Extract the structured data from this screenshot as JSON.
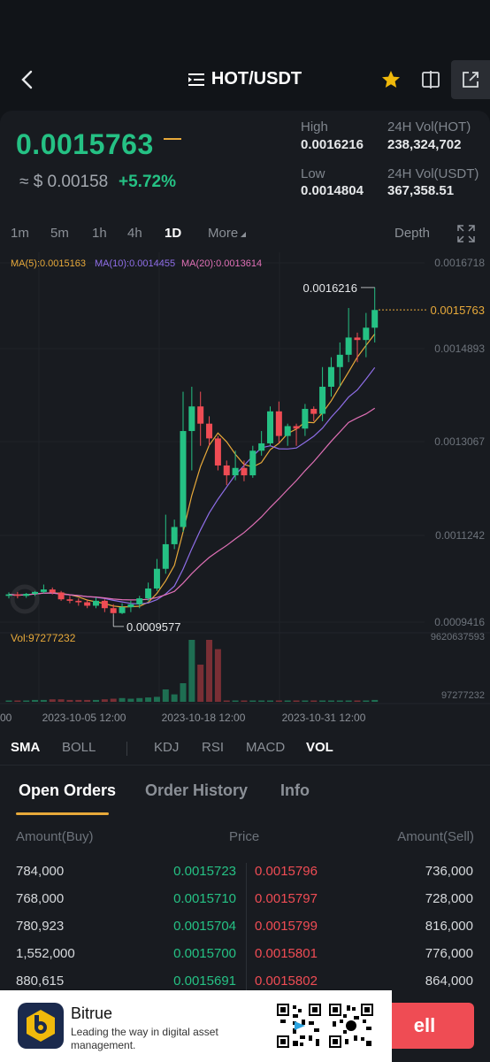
{
  "header": {
    "pair": "HOT/USDT",
    "icons": [
      "back-icon",
      "menu-icon",
      "star-icon",
      "compare-icon",
      "share-icon"
    ]
  },
  "ticker": {
    "last_price": "0.0015763",
    "usd_equiv": "≈ $ 0.00158",
    "change": "+5.72%",
    "high_label": "High",
    "high": "0.0016216",
    "low_label": "Low",
    "low": "0.0014804",
    "vol_hot_label": "24H Vol(HOT)",
    "vol_hot": "238,324,702",
    "vol_usdt_label": "24H Vol(USDT)",
    "vol_usdt": "367,358.51"
  },
  "timeframes": {
    "t1": "1m",
    "t2": "5m",
    "t3": "1h",
    "t4": "4h",
    "t5": "1D",
    "more": "More",
    "depth": "Depth",
    "active": "1D"
  },
  "chart_data": {
    "type": "candlestick",
    "ma_labels": {
      "ma5": "MA(5):0.0015163",
      "ma10": "MA(10):0.0014455",
      "ma20": "MA(20):0.0013614"
    },
    "y_ticks": [
      "0.0016718",
      "0.0014893",
      "0.0013067",
      "0.0011242",
      "0.0009416"
    ],
    "last_price_label": "0.0015763",
    "max_label": "0.0016216",
    "min_label": "0.0009577",
    "vol_label": "Vol:97277232",
    "vol_ticks": [
      "9620637593",
      "97277232"
    ],
    "x_ticks": [
      "00",
      "2023-10-05 12:00",
      "2023-10-18 12:00",
      "2023-10-31 12:00"
    ],
    "candles": [
      [
        0.000995,
        0.000998,
        0.00099,
        0.001002
      ],
      [
        0.000998,
        0.000995,
        0.00099,
        0.001003
      ],
      [
        0.000995,
        0.000999,
        0.000991,
        0.001001
      ],
      [
        0.000999,
        0.001003,
        0.000995,
        0.001005
      ],
      [
        0.001003,
        0.001008,
        0.001,
        0.001018
      ],
      [
        0.001008,
        0.001002,
        0.000998,
        0.001012
      ],
      [
        0.001002,
        0.000988,
        0.000985,
        0.001005
      ],
      [
        0.000988,
        0.000985,
        0.00098,
        0.000995
      ],
      [
        0.000985,
        0.000982,
        0.000975,
        0.00099
      ],
      [
        0.000982,
        0.000975,
        0.00097,
        0.000988
      ],
      [
        0.000975,
        0.000985,
        0.00097,
        0.000992
      ],
      [
        0.000985,
        0.00097,
        0.000962,
        0.000988
      ],
      [
        0.00097,
        0.00096,
        0.000958,
        0.000978
      ],
      [
        0.00096,
        0.000972,
        0.000958,
        0.00098
      ],
      [
        0.000972,
        0.000978,
        0.000962,
        0.000985
      ],
      [
        0.000978,
        0.00099,
        0.00097,
        0.000995
      ],
      [
        0.00099,
        0.00101,
        0.000985,
        0.001022
      ],
      [
        0.00101,
        0.00105,
        0.001005,
        0.00107
      ],
      [
        0.00105,
        0.0011,
        0.00104,
        0.00116
      ],
      [
        0.0011,
        0.001135,
        0.00109,
        0.00115
      ],
      [
        0.001135,
        0.00133,
        0.001125,
        0.00141
      ],
      [
        0.00133,
        0.00138,
        0.00125,
        0.00142
      ],
      [
        0.00138,
        0.001345,
        0.0013,
        0.00141
      ],
      [
        0.001345,
        0.001315,
        0.0013,
        0.00136
      ],
      [
        0.001315,
        0.00126,
        0.00125,
        0.00132
      ],
      [
        0.00126,
        0.00124,
        0.00122,
        0.00127
      ],
      [
        0.00124,
        0.001255,
        0.00123,
        0.00129
      ],
      [
        0.001255,
        0.00124,
        0.001228,
        0.00127
      ],
      [
        0.00124,
        0.00129,
        0.001235,
        0.0013
      ],
      [
        0.00129,
        0.001305,
        0.00128,
        0.00133
      ],
      [
        0.001305,
        0.00137,
        0.0013,
        0.00138
      ],
      [
        0.00137,
        0.00132,
        0.001305,
        0.00139
      ],
      [
        0.00132,
        0.00134,
        0.0013,
        0.001345
      ],
      [
        0.00134,
        0.001335,
        0.0013,
        0.001345
      ],
      [
        0.001335,
        0.001375,
        0.00132,
        0.001385
      ],
      [
        0.001375,
        0.001365,
        0.00135,
        0.00138
      ],
      [
        0.001365,
        0.00142,
        0.00135,
        0.00146
      ],
      [
        0.00142,
        0.00146,
        0.0014,
        0.00148
      ],
      [
        0.00146,
        0.001485,
        0.00142,
        0.00151
      ],
      [
        0.001485,
        0.00152,
        0.00147,
        0.00158
      ],
      [
        0.00152,
        0.001515,
        0.00147,
        0.00153
      ],
      [
        0.001515,
        0.00154,
        0.00148,
        0.00157
      ],
      [
        0.00154,
        0.001576,
        0.00151,
        0.001622
      ]
    ],
    "volume_ratios": [
      0.02,
      0.02,
      0.02,
      0.03,
      0.03,
      0.04,
      0.04,
      0.03,
      0.03,
      0.03,
      0.03,
      0.04,
      0.05,
      0.06,
      0.05,
      0.06,
      0.07,
      0.08,
      0.2,
      0.12,
      0.3,
      1.0,
      0.6,
      1.0,
      0.85,
      0.02,
      0.02,
      0.02,
      0.02,
      0.02,
      0.02,
      0.02,
      0.02,
      0.02,
      0.02,
      0.02,
      0.02,
      0.02,
      0.02,
      0.02,
      0.02,
      0.02,
      0.03
    ]
  },
  "indicator_tabs": {
    "sma": "SMA",
    "boll": "BOLL",
    "kdj": "KDJ",
    "rsi": "RSI",
    "macd": "MACD",
    "vol": "VOL"
  },
  "order_tabs": {
    "open": "Open Orders",
    "history": "Order History",
    "info": "Info"
  },
  "order_book": {
    "head_buy": "Amount(Buy)",
    "head_price": "Price",
    "head_sell": "Amount(Sell)",
    "rows": [
      {
        "buy_amt": "784,000",
        "bid": "0.0015723",
        "ask": "0.0015796",
        "sell_amt": "736,000"
      },
      {
        "buy_amt": "768,000",
        "bid": "0.0015710",
        "ask": "0.0015797",
        "sell_amt": "728,000"
      },
      {
        "buy_amt": "780,923",
        "bid": "0.0015704",
        "ask": "0.0015799",
        "sell_amt": "816,000"
      },
      {
        "buy_amt": "1,552,000",
        "bid": "0.0015700",
        "ask": "0.0015801",
        "sell_amt": "776,000"
      },
      {
        "buy_amt": "880,615",
        "bid": "0.0015691",
        "ask": "0.0015802",
        "sell_amt": "864,000"
      }
    ]
  },
  "banner": {
    "brand": "Bitrue",
    "tagline": "Leading the way in digital asset management."
  },
  "sell_button": "ell",
  "colors": {
    "up": "#25c184",
    "down": "#ef4c54",
    "accent": "#e7a93a",
    "ma5": "#e7a93a",
    "ma10": "#8f6ee8",
    "ma20": "#e070b6"
  }
}
